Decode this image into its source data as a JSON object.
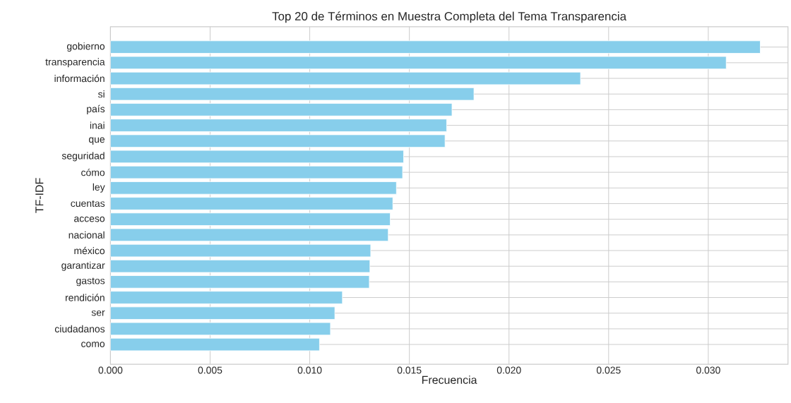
{
  "chart_data": {
    "type": "bar",
    "orientation": "horizontal",
    "title": "Top 20 de Términos en Muestra Completa del Tema Transparencia",
    "xlabel": "Frecuencia",
    "ylabel": "TF-IDF",
    "categories": [
      "gobierno",
      "transparencia",
      "información",
      "si",
      "país",
      "inai",
      "que",
      "seguridad",
      "cómo",
      "ley",
      "cuentas",
      "acceso",
      "nacional",
      "méxico",
      "garantizar",
      "gastos",
      "rendición",
      "ser",
      "ciudadanos",
      "como"
    ],
    "values": [
      0.03261,
      0.0309,
      0.02359,
      0.01824,
      0.01714,
      0.01687,
      0.01679,
      0.01471,
      0.01466,
      0.01435,
      0.01417,
      0.01404,
      0.01394,
      0.01306,
      0.01302,
      0.01299,
      0.01164,
      0.01126,
      0.01104,
      0.01049
    ],
    "color": "#87ceeb",
    "xlim": [
      0,
      0.034
    ],
    "xticks": [
      {
        "value": 0,
        "label": "0.000"
      },
      {
        "value": 0.005,
        "label": "0.005"
      },
      {
        "value": 0.01,
        "label": "0.010"
      },
      {
        "value": 0.015,
        "label": "0.015"
      },
      {
        "value": 0.02,
        "label": "0.020"
      },
      {
        "value": 0.025,
        "label": "0.025"
      },
      {
        "value": 0.03,
        "label": "0.030"
      }
    ],
    "grid": true
  }
}
